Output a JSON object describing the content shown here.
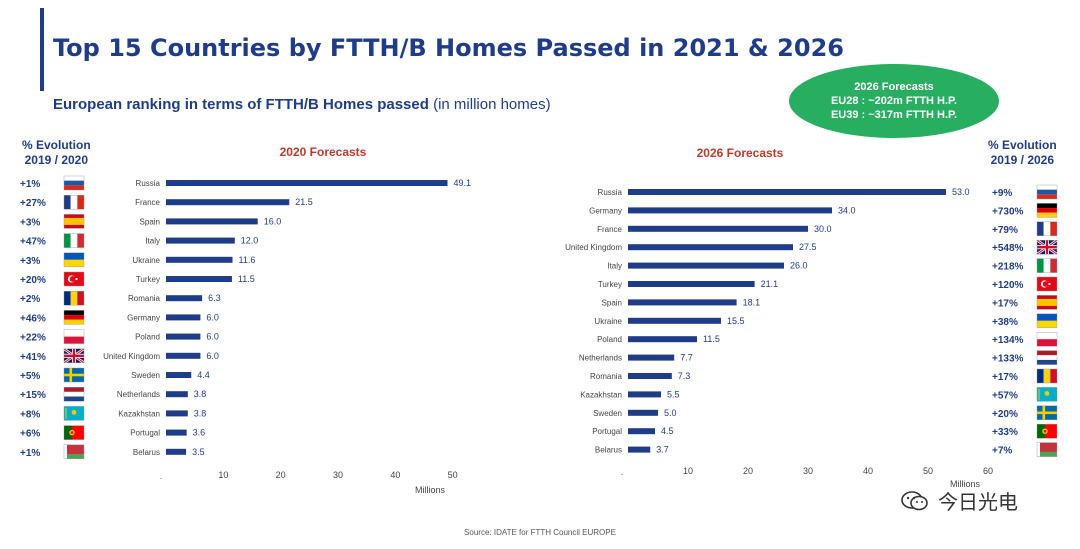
{
  "title": "Top 15 Countries by FTTH/B Homes Passed in 2021 & 2026",
  "subtitle": "European ranking in terms of FTTH/B Homes passed",
  "subtitle_unit": "(in million homes)",
  "forecast_bubble": {
    "title": "2026 Forecasts",
    "line1": "EU28 : ~202m FTTH H.P.",
    "line2": "EU39 : ~317m FTTH H.P."
  },
  "evolution_left": {
    "title": "% Evolution",
    "period": "2019 / 2020"
  },
  "evolution_right": {
    "title": "% Evolution",
    "period": "2019 / 2026"
  },
  "source": "Source: IDATE for FTTH Council EUROPE",
  "watermark": "今日光电",
  "colors": {
    "bar": "#1f3c88",
    "text": "#1f3c88",
    "title_red": "#c0392b",
    "bubble": "#27ae60"
  },
  "chart_data": [
    {
      "type": "bar",
      "orientation": "horizontal",
      "title": "2020 Forecasts",
      "xlabel": "Millions",
      "xlim": [
        0,
        60
      ],
      "xticks": [
        10,
        20,
        30,
        40,
        50
      ],
      "categories": [
        "Russia",
        "France",
        "Spain",
        "Italy",
        "Ukraine",
        "Turkey",
        "Romania",
        "Germany",
        "Poland",
        "United Kingdom",
        "Sweden",
        "Netherlands",
        "Kazakhstan",
        "Portugal",
        "Belarus"
      ],
      "values": [
        49.1,
        21.5,
        16.0,
        12.0,
        11.6,
        11.5,
        6.3,
        6.0,
        6.0,
        6.0,
        4.4,
        3.8,
        3.8,
        3.6,
        3.5
      ],
      "value_labels": [
        "49.1",
        "21.5",
        "16.0",
        "12.0",
        "11.6",
        "11.5",
        "6.3",
        "6.0",
        "6.0",
        "6.0",
        "4.4",
        "3.8",
        "3.8",
        "3.6",
        "3.5"
      ],
      "evolution": [
        "+1%",
        "+27%",
        "+3%",
        "+47%",
        "+3%",
        "+20%",
        "+2%",
        "+46%",
        "+22%",
        "+41%",
        "+5%",
        "+15%",
        "+8%",
        "+6%",
        "+1%"
      ],
      "flags": [
        "russia",
        "france",
        "spain",
        "italy",
        "ukraine",
        "turkey",
        "romania",
        "germany",
        "poland",
        "uk",
        "sweden",
        "netherlands",
        "kazakhstan",
        "portugal",
        "belarus"
      ]
    },
    {
      "type": "bar",
      "orientation": "horizontal",
      "title": "2026 Forecasts",
      "xlabel": "Millions",
      "xlim": [
        0,
        60
      ],
      "xticks": [
        10,
        20,
        30,
        40,
        50,
        60
      ],
      "categories": [
        "Russia",
        "Germany",
        "France",
        "United Kingdom",
        "Italy",
        "Turkey",
        "Spain",
        "Ukraine",
        "Poland",
        "Netherlands",
        "Romania",
        "Kazakhstan",
        "Sweden",
        "Portugal",
        "Belarus"
      ],
      "values": [
        53.0,
        34.0,
        30.0,
        27.5,
        26.0,
        21.1,
        18.1,
        15.5,
        11.5,
        7.7,
        7.3,
        5.5,
        5.0,
        4.5,
        3.7
      ],
      "value_labels": [
        "53.0",
        "34.0",
        "30.0",
        "27.5",
        "26.0",
        "21.1",
        "18.1",
        "15.5",
        "11.5",
        "7.7",
        "7.3",
        "5.5",
        "5.0",
        "4.5",
        "3.7"
      ],
      "evolution": [
        "+9%",
        "+730%",
        "+79%",
        "+548%",
        "+218%",
        "+120%",
        "+17%",
        "+38%",
        "+134%",
        "+133%",
        "+17%",
        "+57%",
        "+20%",
        "+33%",
        "+7%"
      ],
      "flags": [
        "russia",
        "germany",
        "france",
        "uk",
        "italy",
        "turkey",
        "spain",
        "ukraine",
        "poland",
        "netherlands",
        "romania",
        "kazakhstan",
        "sweden",
        "portugal",
        "belarus"
      ]
    }
  ]
}
